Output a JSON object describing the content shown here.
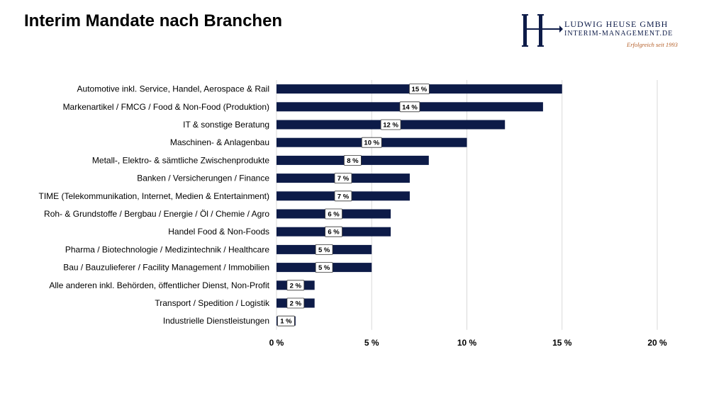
{
  "title": "Interim Mandate nach Branchen",
  "logo": {
    "name": "LUDWIG HEUSE GMBH",
    "subtitle": "INTERIM-MANAGEMENT.DE",
    "tagline": "Erfolgreich seit 1993"
  },
  "colors": {
    "bar": "#0d1b48",
    "grid": "#d9d9d9",
    "logo_text": "#0d1b48",
    "logo_accent": "#b5602a"
  },
  "chart_data": {
    "type": "bar",
    "orientation": "horizontal",
    "title": "",
    "xlabel": "",
    "ylabel": "",
    "xlim": [
      0,
      20
    ],
    "grid": true,
    "x_ticks": [
      {
        "value": 0,
        "label": "0 %"
      },
      {
        "value": 5,
        "label": "5 %"
      },
      {
        "value": 10,
        "label": "10 %"
      },
      {
        "value": 15,
        "label": "15 %"
      },
      {
        "value": 20,
        "label": "20 %"
      }
    ],
    "categories": [
      "Automotive inkl. Service, Handel, Aerospace & Rail",
      "Markenartikel / FMCG / Food & Non-Food (Produktion)",
      "IT & sonstige Beratung",
      "Maschinen- & Anlagenbau",
      "Metall-, Elektro- & sämtliche Zwischenprodukte",
      "Banken / Versicherungen / Finance",
      "TIME (Telekommunikation, Internet, Medien & Entertainment)",
      "Roh- & Grundstoffe / Bergbau / Energie / Öl / Chemie / Agro",
      "Handel Food & Non-Foods",
      "Pharma / Biotechnologie / Medizintechnik / Healthcare",
      "Bau / Bauzulieferer / Facility Management / Immobilien",
      "Alle anderen inkl. Behörden, öffentlicher Dienst, Non-Profit",
      "Transport / Spedition / Logistik",
      "Industrielle Dienstleistungen"
    ],
    "values": [
      15,
      14,
      12,
      10,
      8,
      7,
      7,
      6,
      6,
      5,
      5,
      2,
      2,
      1
    ],
    "value_labels": [
      "15 %",
      "14 %",
      "12 %",
      "10 %",
      "8 %",
      "7 %",
      "7 %",
      "6 %",
      "6 %",
      "5 %",
      "5 %",
      "2 %",
      "2 %",
      "1 %"
    ]
  }
}
